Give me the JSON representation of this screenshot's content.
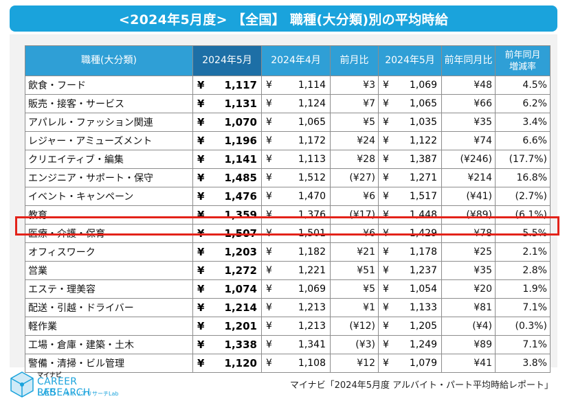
{
  "title": "<2024年5月度> 【全国】 職種(大分類)別の平均時給",
  "headers": {
    "category": "職種(大分類)",
    "current": "2024年5月",
    "prev_month": "2024年4月",
    "mom": "前月比",
    "last_year": "2024年5月",
    "yoy": "前年同月比",
    "yoy_rate": "前年同月\n増減率"
  },
  "currency_symbol": "¥",
  "rows": [
    {
      "category": "飲食・フード",
      "current": "1,117",
      "prev": "1,114",
      "mom": "¥3",
      "ly": "1,069",
      "yoy": "¥48",
      "rate": "4.5%",
      "mom_neg": false,
      "yoy_neg": false,
      "rate_neg": false
    },
    {
      "category": "販売・接客・サービス",
      "current": "1,131",
      "prev": "1,124",
      "mom": "¥7",
      "ly": "1,065",
      "yoy": "¥66",
      "rate": "6.2%",
      "mom_neg": false,
      "yoy_neg": false,
      "rate_neg": false
    },
    {
      "category": "アパレル・ファッション関連",
      "current": "1,070",
      "prev": "1,065",
      "mom": "¥5",
      "ly": "1,035",
      "yoy": "¥35",
      "rate": "3.4%",
      "mom_neg": false,
      "yoy_neg": false,
      "rate_neg": false
    },
    {
      "category": "レジャー・アミューズメント",
      "current": "1,196",
      "prev": "1,172",
      "mom": "¥24",
      "ly": "1,122",
      "yoy": "¥74",
      "rate": "6.6%",
      "mom_neg": false,
      "yoy_neg": false,
      "rate_neg": false
    },
    {
      "category": "クリエイティブ・編集",
      "current": "1,141",
      "prev": "1,113",
      "mom": "¥28",
      "ly": "1,387",
      "yoy": "(¥246)",
      "rate": "(17.7%)",
      "mom_neg": false,
      "yoy_neg": true,
      "rate_neg": true
    },
    {
      "category": "エンジニア・サポート・保守",
      "current": "1,485",
      "prev": "1,512",
      "mom": "(¥27)",
      "ly": "1,271",
      "yoy": "¥214",
      "rate": "16.8%",
      "mom_neg": true,
      "yoy_neg": false,
      "rate_neg": false
    },
    {
      "category": "イベント・キャンペーン",
      "current": "1,476",
      "prev": "1,470",
      "mom": "¥6",
      "ly": "1,517",
      "yoy": "(¥41)",
      "rate": "(2.7%)",
      "mom_neg": false,
      "yoy_neg": true,
      "rate_neg": true
    },
    {
      "category": "教育",
      "current": "1,359",
      "prev": "1,376",
      "mom": "(¥17)",
      "ly": "1,448",
      "yoy": "(¥89)",
      "rate": "(6.1%)",
      "mom_neg": true,
      "yoy_neg": true,
      "rate_neg": true
    },
    {
      "category": "医療・介護・保育",
      "current": "1,507",
      "prev": "1,501",
      "mom": "¥6",
      "ly": "1,429",
      "yoy": "¥78",
      "rate": "5.5%",
      "mom_neg": false,
      "yoy_neg": false,
      "rate_neg": false
    },
    {
      "category": "オフィスワーク",
      "current": "1,203",
      "prev": "1,182",
      "mom": "¥21",
      "ly": "1,178",
      "yoy": "¥25",
      "rate": "2.1%",
      "mom_neg": false,
      "yoy_neg": false,
      "rate_neg": false
    },
    {
      "category": "営業",
      "current": "1,272",
      "prev": "1,221",
      "mom": "¥51",
      "ly": "1,237",
      "yoy": "¥35",
      "rate": "2.8%",
      "mom_neg": false,
      "yoy_neg": false,
      "rate_neg": false
    },
    {
      "category": "エステ・理美容",
      "current": "1,074",
      "prev": "1,069",
      "mom": "¥5",
      "ly": "1,054",
      "yoy": "¥20",
      "rate": "1.9%",
      "mom_neg": false,
      "yoy_neg": false,
      "rate_neg": false
    },
    {
      "category": "配送・引越・ドライバー",
      "current": "1,214",
      "prev": "1,213",
      "mom": "¥1",
      "ly": "1,133",
      "yoy": "¥81",
      "rate": "7.1%",
      "mom_neg": false,
      "yoy_neg": false,
      "rate_neg": false
    },
    {
      "category": "軽作業",
      "current": "1,201",
      "prev": "1,213",
      "mom": "(¥12)",
      "ly": "1,205",
      "yoy": "(¥4)",
      "rate": "(0.3%)",
      "mom_neg": true,
      "yoy_neg": true,
      "rate_neg": true
    },
    {
      "category": "工場・倉庫・建築・土木",
      "current": "1,338",
      "prev": "1,341",
      "mom": "(¥3)",
      "ly": "1,249",
      "yoy": "¥89",
      "rate": "7.1%",
      "mom_neg": true,
      "yoy_neg": false,
      "rate_neg": false
    },
    {
      "category": "警備・清掃・ビル管理",
      "current": "1,120",
      "prev": "1,108",
      "mom": "¥12",
      "ly": "1,079",
      "yoy": "¥41",
      "rate": "3.8%",
      "mom_neg": false,
      "yoy_neg": false,
      "rate_neg": false
    }
  ],
  "highlight_category": "医療・介護・保育",
  "colors": {
    "title_bg": "#1aa3dc",
    "header_bg": "#2f9fd6",
    "header_dark_bg": "#1d6fa6",
    "negative": "#e0261e",
    "highlight_border": "#e32219"
  },
  "logo": {
    "top": "マイナビ",
    "main": "CAREER RESEARCH",
    "lab": "LAB",
    "sub": "キャリアリサーチLab"
  },
  "source": "マイナビ「2024年5月度 アルバイト・パート平均時給レポート」",
  "chart_data": {
    "type": "table",
    "title": "<2024年5月度> 【全国】 職種(大分類)別の平均時給",
    "columns": [
      "職種(大分類)",
      "2024年5月",
      "2024年4月",
      "前月比",
      "2024年5月",
      "前年同月比",
      "前年同月 増減率"
    ],
    "rows": [
      [
        "飲食・フード",
        1117,
        1114,
        3,
        1069,
        48,
        "4.5%"
      ],
      [
        "販売・接客・サービス",
        1131,
        1124,
        7,
        1065,
        66,
        "6.2%"
      ],
      [
        "アパレル・ファッション関連",
        1070,
        1065,
        5,
        1035,
        35,
        "3.4%"
      ],
      [
        "レジャー・アミューズメント",
        1196,
        1172,
        24,
        1122,
        74,
        "6.6%"
      ],
      [
        "クリエイティブ・編集",
        1141,
        1113,
        28,
        1387,
        -246,
        "-17.7%"
      ],
      [
        "エンジニア・サポート・保守",
        1485,
        1512,
        -27,
        1271,
        214,
        "16.8%"
      ],
      [
        "イベント・キャンペーン",
        1476,
        1470,
        6,
        1517,
        -41,
        "-2.7%"
      ],
      [
        "教育",
        1359,
        1376,
        -17,
        1448,
        -89,
        "-6.1%"
      ],
      [
        "医療・介護・保育",
        1507,
        1501,
        6,
        1429,
        78,
        "5.5%"
      ],
      [
        "オフィスワーク",
        1203,
        1182,
        21,
        1178,
        25,
        "2.1%"
      ],
      [
        "営業",
        1272,
        1221,
        51,
        1237,
        35,
        "2.8%"
      ],
      [
        "エステ・理美容",
        1074,
        1069,
        5,
        1054,
        20,
        "1.9%"
      ],
      [
        "配送・引越・ドライバー",
        1214,
        1213,
        1,
        1133,
        81,
        "7.1%"
      ],
      [
        "軽作業",
        1201,
        1213,
        -12,
        1205,
        -4,
        "-0.3%"
      ],
      [
        "工場・倉庫・建築・土木",
        1338,
        1341,
        -3,
        1249,
        89,
        "7.1%"
      ],
      [
        "警備・清掃・ビル管理",
        1120,
        1108,
        12,
        1079,
        41,
        "3.8%"
      ]
    ]
  }
}
